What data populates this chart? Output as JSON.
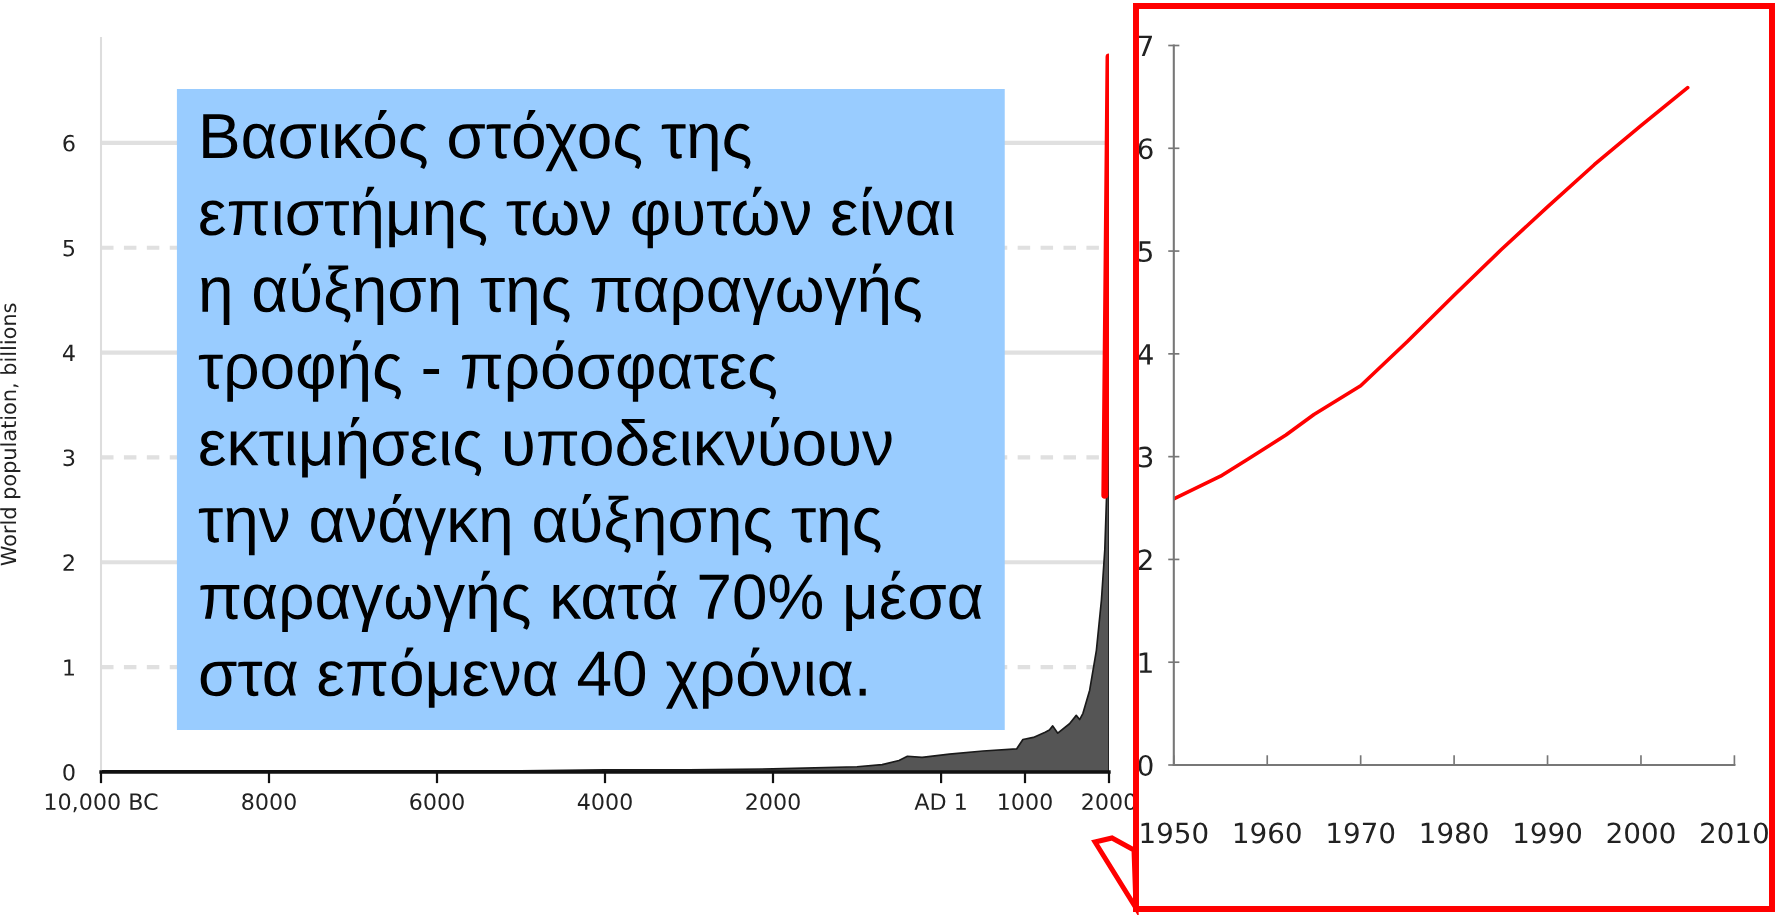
{
  "chart_data": [
    {
      "type": "area",
      "ylabel": "World population, billions",
      "annotations": [
        "Βασικός στόχος της\nεπιστήμης των φυτών είναι\nη αύξηση της παραγωγής\nτροφής - πρόσφατες\nεκτιμήσεις υποδεικνύουν\nτην ανάγκη αύξησης της\nπαραγωγής κατά 70% μέσα\nστα επόμενα 40 χρόνια."
      ],
      "series": [
        {
          "type": "area",
          "color": "#555555",
          "x": [
            -10000,
            -8000,
            -6000,
            -5000,
            -4000,
            -3000,
            -2000,
            -1000,
            -700,
            -500,
            -400,
            -225,
            100,
            500,
            900,
            975,
            1100,
            1240,
            1290,
            1330,
            1390,
            1530,
            1610,
            1650,
            1690,
            1770,
            1850,
            1910,
            1950,
            1970,
            2000
          ],
          "values": [
            0.01,
            0.01,
            0.01,
            0.01,
            0.02,
            0.02,
            0.03,
            0.05,
            0.07,
            0.11,
            0.15,
            0.14,
            0.17,
            0.2,
            0.22,
            0.31,
            0.33,
            0.38,
            0.4,
            0.44,
            0.37,
            0.46,
            0.54,
            0.5,
            0.56,
            0.78,
            1.16,
            1.64,
            2.12,
            2.6,
            6.1
          ]
        },
        {
          "type": "line",
          "color": "#ff0000",
          "x": [
            1950,
            2000
          ],
          "values": [
            2.64,
            6.82
          ]
        }
      ],
      "xlim": [
        -10000,
        2000
      ],
      "xticks": [
        {
          "value": -10000,
          "label": "10,000 BC"
        },
        {
          "value": -8000,
          "label": "8000"
        },
        {
          "value": -6000,
          "label": "6000"
        },
        {
          "value": -4000,
          "label": "4000"
        },
        {
          "value": -2000,
          "label": "2000"
        },
        {
          "value": 1,
          "label": "AD 1"
        },
        1000,
        2000
      ],
      "ylim": [
        0,
        7
      ],
      "yticks": [
        0,
        1,
        2,
        3,
        4,
        5,
        6
      ],
      "grid": "y"
    },
    {
      "type": "line",
      "x": [
        1950,
        1955,
        1958,
        1962,
        1965,
        1970,
        1975,
        1980,
        1985,
        1990,
        1995,
        2000,
        2005
      ],
      "series": [
        {
          "color": "#ff0000",
          "values": [
            2.59,
            2.81,
            2.98,
            3.21,
            3.41,
            3.69,
            4.12,
            4.57,
            5.01,
            5.43,
            5.84,
            6.22,
            6.59
          ]
        }
      ],
      "xlim": [
        1950,
        2010
      ],
      "xticks": [
        1950,
        1960,
        1970,
        1980,
        1990,
        2000,
        2010
      ],
      "ylim": [
        0,
        7
      ],
      "yticks": [
        0,
        1,
        2,
        3,
        4,
        5,
        6,
        7
      ]
    }
  ]
}
